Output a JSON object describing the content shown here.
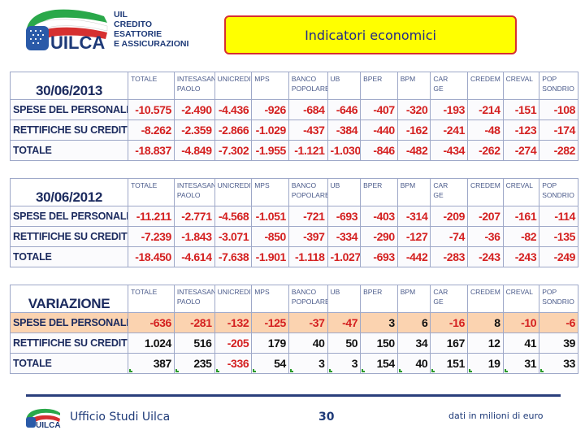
{
  "header": {
    "logo_word": "UILCA",
    "logo_lines": [
      "UIL",
      "CREDITO",
      "ESATTORIE",
      "E ASSICURAZIONI"
    ],
    "title": "Indicatori economici"
  },
  "columns": [
    "TOTALE",
    "INTESASAN PAOLO",
    "UNICREDIT",
    "MPS",
    "BANCO POPOLARE",
    "UB",
    "BPER",
    "BPM",
    "CAR GE",
    "CREDEM",
    "CREVAL",
    "POP SONDRIO"
  ],
  "tables": [
    {
      "caption": "30/06/2013",
      "rows": [
        {
          "label": "SPESE DEL PERSONALE",
          "values": [
            "-10.575",
            "-2.490",
            "-4.436",
            "-926",
            "-684",
            "-646",
            "-407",
            "-320",
            "-193",
            "-214",
            "-151",
            "-108"
          ]
        },
        {
          "label": "RETTIFICHE SU CREDITI",
          "values": [
            "-8.262",
            "-2.359",
            "-2.866",
            "-1.029",
            "-437",
            "-384",
            "-440",
            "-162",
            "-241",
            "-48",
            "-123",
            "-174"
          ]
        },
        {
          "label": "TOTALE",
          "values": [
            "-18.837",
            "-4.849",
            "-7.302",
            "-1.955",
            "-1.121",
            "-1.030",
            "-846",
            "-482",
            "-434",
            "-262",
            "-274",
            "-282"
          ]
        }
      ]
    },
    {
      "caption": "30/06/2012",
      "rows": [
        {
          "label": "SPESE DEL PERSONALE",
          "values": [
            "-11.211",
            "-2.771",
            "-4.568",
            "-1.051",
            "-721",
            "-693",
            "-403",
            "-314",
            "-209",
            "-207",
            "-161",
            "-114"
          ]
        },
        {
          "label": "RETTIFICHE SU CREDITI",
          "values": [
            "-7.239",
            "-1.843",
            "-3.071",
            "-850",
            "-397",
            "-334",
            "-290",
            "-127",
            "-74",
            "-36",
            "-82",
            "-135"
          ]
        },
        {
          "label": "TOTALE",
          "values": [
            "-18.450",
            "-4.614",
            "-7.638",
            "-1.901",
            "-1.118",
            "-1.027",
            "-693",
            "-442",
            "-283",
            "-243",
            "-243",
            "-249"
          ]
        }
      ]
    },
    {
      "caption": "VARIAZIONE",
      "rows": [
        {
          "label": "SPESE DEL PERSONALE",
          "values": [
            "-636",
            "-281",
            "-132",
            "-125",
            "-37",
            "-47",
            "3",
            "6",
            "-16",
            "8",
            "-10",
            "-6"
          ]
        },
        {
          "label": "RETTIFICHE SU CREDITI",
          "values": [
            "1.024",
            "516",
            "-205",
            "179",
            "40",
            "50",
            "150",
            "34",
            "167",
            "12",
            "41",
            "39"
          ]
        },
        {
          "label": "TOTALE",
          "values": [
            "387",
            "235",
            "-336",
            "54",
            "3",
            "3",
            "154",
            "40",
            "151",
            "19",
            "31",
            "33"
          ]
        }
      ]
    }
  ],
  "footer": {
    "unit": "Ufficio Studi Uilca",
    "page": "30",
    "note": "dati in milioni di euro"
  },
  "colors": {
    "accent": "#1e3a78",
    "negative": "#d42020",
    "highlight": "#fbd3b0",
    "title_bg": "#ffff00",
    "title_border": "#d63030"
  }
}
